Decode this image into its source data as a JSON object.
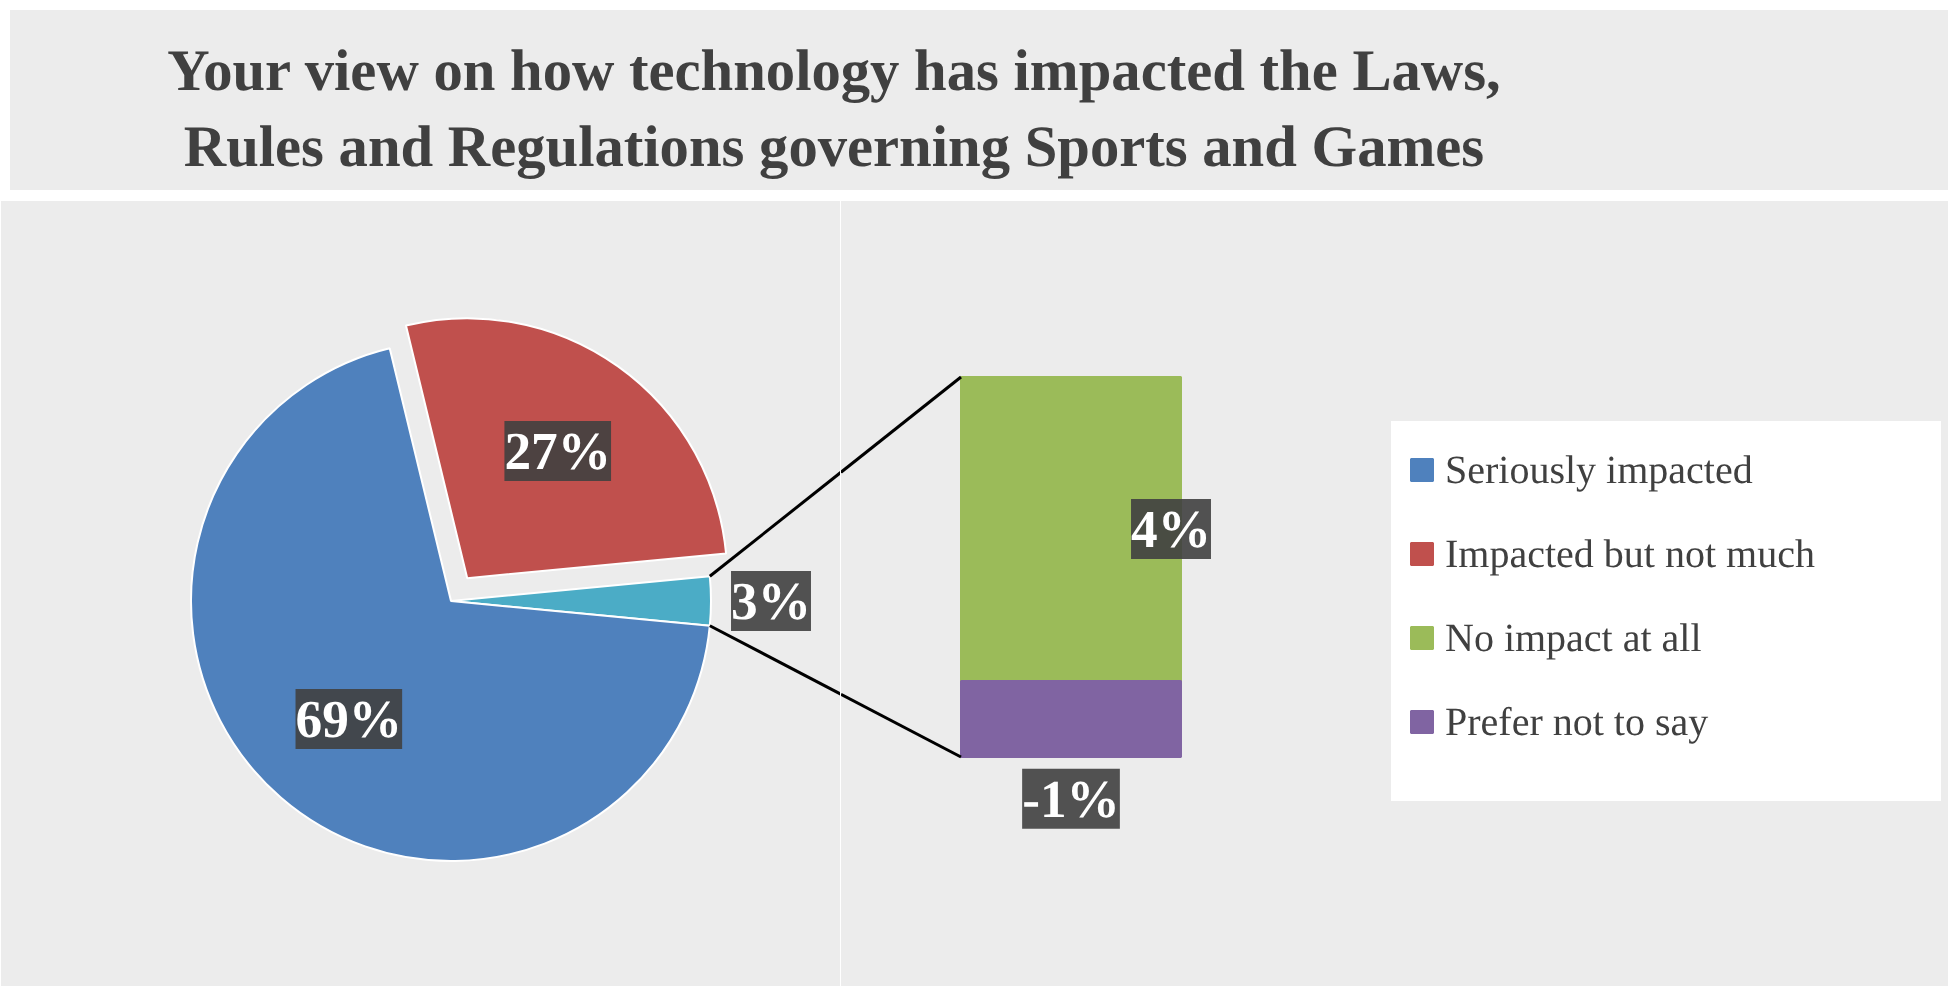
{
  "chart_data": [
    {
      "type": "pie",
      "title": "Your view on how technology has impacted the Laws, Rules and Regulations governing Sports and Games",
      "categories": [
        "Seriously impacted",
        "Impacted but not much",
        null
      ],
      "values": [
        69,
        27,
        3
      ],
      "value_labels": [
        "69%",
        "27%",
        "3%"
      ],
      "colors": [
        "#4f81bd",
        "#c0504d",
        "#4bacc6"
      ],
      "legend": "right"
    },
    {
      "type": "bar",
      "categories": [
        null
      ],
      "stacked": true,
      "series": [
        {
          "name": "No impact at all",
          "color": "#9bbb59",
          "values": [
            4
          ],
          "value_labels": [
            "4%"
          ]
        },
        {
          "name": "Prefer not to say",
          "color": "#8064a2",
          "values": [
            -1
          ],
          "value_labels": [
            "-1%"
          ]
        }
      ],
      "legend": "right"
    }
  ]
}
